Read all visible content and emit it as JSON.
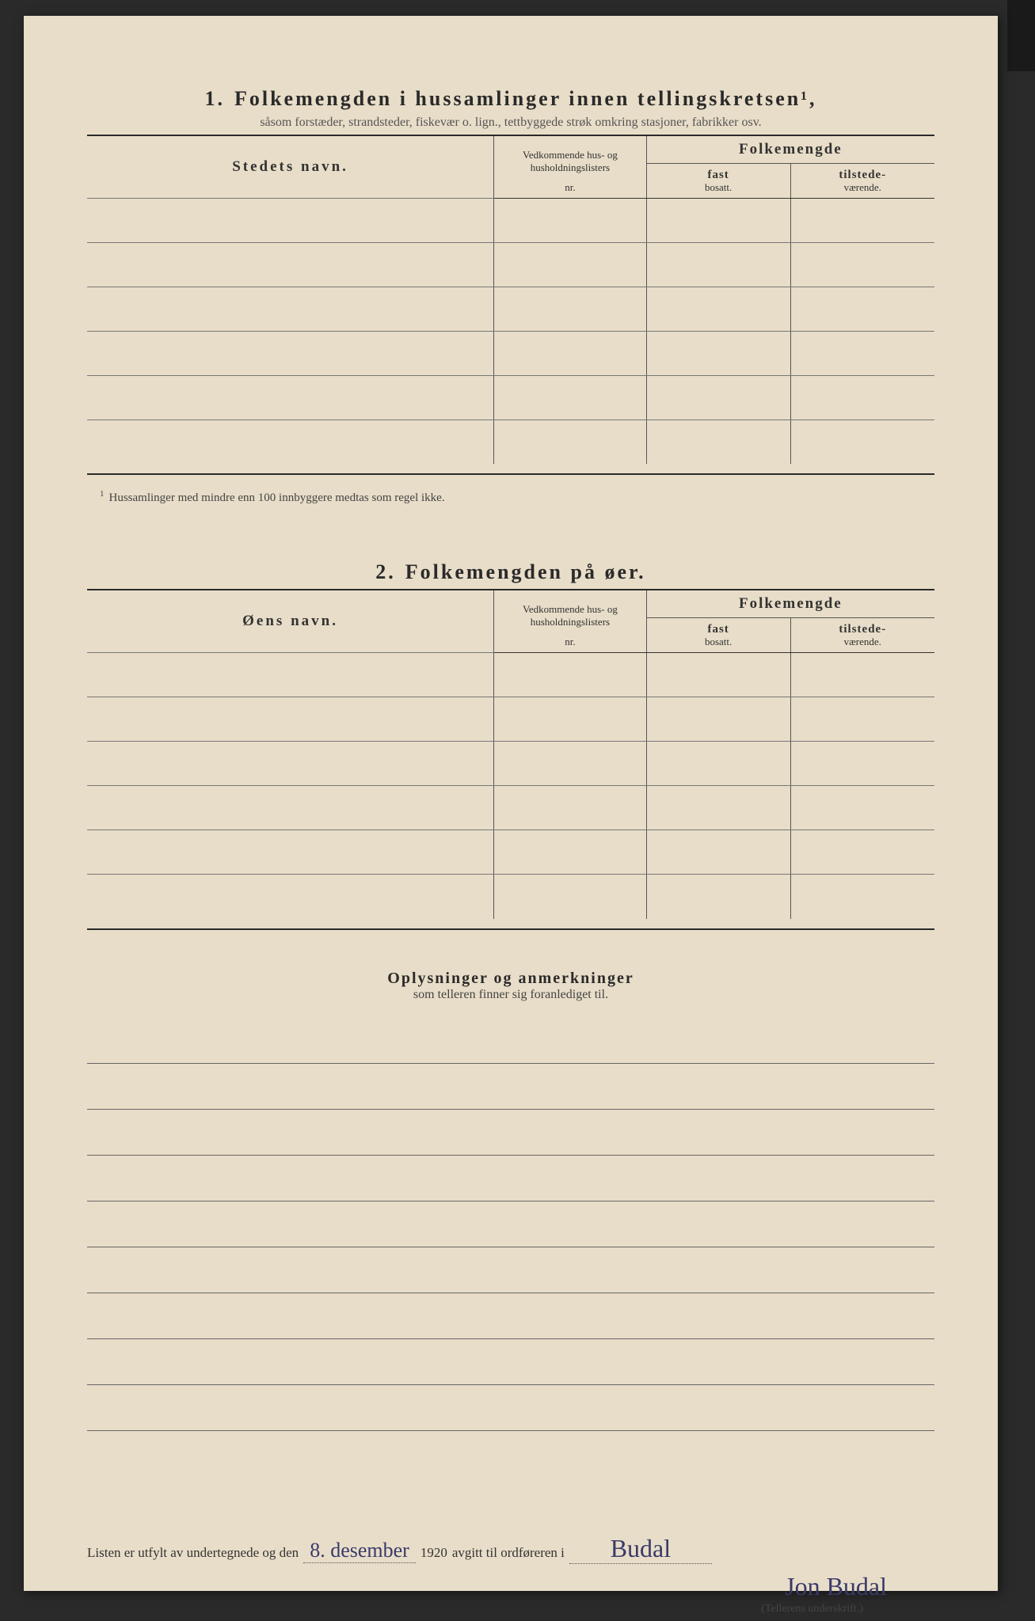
{
  "page": {
    "background_color": "#e8ddc8",
    "text_color": "#2a2a2a",
    "rule_color": "#555555",
    "handwriting_color": "#3a3a6a"
  },
  "section1": {
    "number": "1.",
    "title": "Folkemengden i hussamlinger innen tellingskretsen¹,",
    "subtitle": "såsom forstæder, strandsteder, fiskevær o. lign., tettbyggede strøk omkring stasjoner, fabrikker osv.",
    "columns": {
      "name": "Stedets navn.",
      "nr_line1": "Vedkommende hus- og",
      "nr_line2": "husholdningslisters",
      "nr_line3": "nr.",
      "group": "Folkemengde",
      "fast_top": "fast",
      "fast_bot": "bosatt.",
      "til_top": "tilstede-",
      "til_bot": "værende."
    },
    "rows": [
      "",
      "",
      "",
      "",
      "",
      ""
    ],
    "footnote": "Hussamlinger med mindre enn 100 innbyggere medtas som regel ikke."
  },
  "section2": {
    "number": "2.",
    "title": "Folkemengden på øer.",
    "columns": {
      "name": "Øens navn.",
      "nr_line1": "Vedkommende hus- og",
      "nr_line2": "husholdningslisters",
      "nr_line3": "nr.",
      "group": "Folkemengde",
      "fast_top": "fast",
      "fast_bot": "bosatt.",
      "til_top": "tilstede-",
      "til_bot": "værende."
    },
    "rows": [
      "",
      "",
      "",
      "",
      "",
      ""
    ]
  },
  "notes": {
    "title": "Oplysninger og anmerkninger",
    "subtitle": "som telleren finner sig foranlediget til.",
    "line_count": 9
  },
  "signature": {
    "prefix": "Listen er utfylt av undertegnede og den",
    "date_hw": "8. desember",
    "year": "1920",
    "mid": "avgitt til ordføreren i",
    "place_hw": "Budal",
    "name_hw": "Jon Budal",
    "caption": "(Tellerens underskrift.)"
  }
}
